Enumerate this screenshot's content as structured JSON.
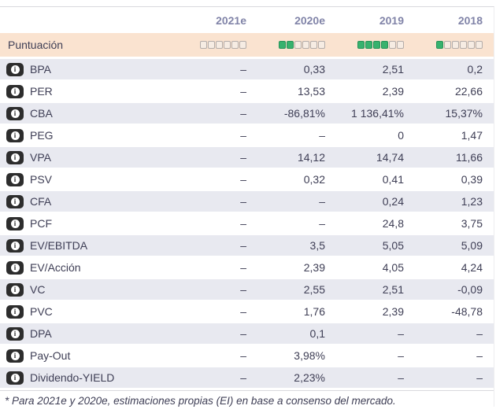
{
  "table": {
    "columns": [
      "2021e",
      "2020e",
      "2019",
      "2018"
    ],
    "score_row": {
      "label": "Puntuación",
      "max_squares": 6,
      "scores": [
        0,
        2,
        4,
        1
      ]
    },
    "rows": [
      {
        "label": "BPA",
        "values": [
          "–",
          "0,33",
          "2,51",
          "0,2"
        ]
      },
      {
        "label": "PER",
        "values": [
          "–",
          "13,53",
          "2,39",
          "22,66"
        ]
      },
      {
        "label": "CBA",
        "values": [
          "–",
          "-86,81%",
          "1 136,41%",
          "15,37%"
        ]
      },
      {
        "label": "PEG",
        "values": [
          "–",
          "–",
          "0",
          "1,47"
        ]
      },
      {
        "label": "VPA",
        "values": [
          "–",
          "14,12",
          "14,74",
          "11,66"
        ]
      },
      {
        "label": "PSV",
        "values": [
          "–",
          "0,32",
          "0,41",
          "0,39"
        ]
      },
      {
        "label": "CFA",
        "values": [
          "–",
          "–",
          "0,24",
          "1,23"
        ]
      },
      {
        "label": "PCF",
        "values": [
          "–",
          "–",
          "24,8",
          "3,75"
        ]
      },
      {
        "label": "EV/EBITDA",
        "values": [
          "–",
          "3,5",
          "5,05",
          "5,09"
        ]
      },
      {
        "label": "EV/Acción",
        "values": [
          "–",
          "2,39",
          "4,05",
          "4,24"
        ]
      },
      {
        "label": "VC",
        "values": [
          "–",
          "2,55",
          "2,51",
          "-0,09"
        ]
      },
      {
        "label": "PVC",
        "values": [
          "–",
          "1,76",
          "2,39",
          "-48,78"
        ]
      },
      {
        "label": "DPA",
        "values": [
          "–",
          "0,1",
          "–",
          "–"
        ]
      },
      {
        "label": "Pay-Out",
        "values": [
          "–",
          "3,98%",
          "–",
          "–"
        ]
      },
      {
        "label": "Dividendo-YIELD",
        "values": [
          "–",
          "2,23%",
          "–",
          "–"
        ]
      }
    ],
    "footnote": "* Para 2021e y 2020e, estimaciones propias (EI) en base a consenso del mercado."
  },
  "icons": {
    "info": "info-icon",
    "info_glyph": "i"
  },
  "colors": {
    "score_row_bg": "#fae3d0",
    "zebra_row_bg": "#e8e9f0",
    "filled_square": "#37b26e",
    "filled_square_border": "#27935a",
    "empty_square_bg": "#f6ece3",
    "empty_square_border": "#b3aca9",
    "header_text": "#8184a8",
    "body_text": "#3e3e55",
    "divider": "#d9d9dd",
    "info_icon_bg": "#2d2d2d"
  }
}
